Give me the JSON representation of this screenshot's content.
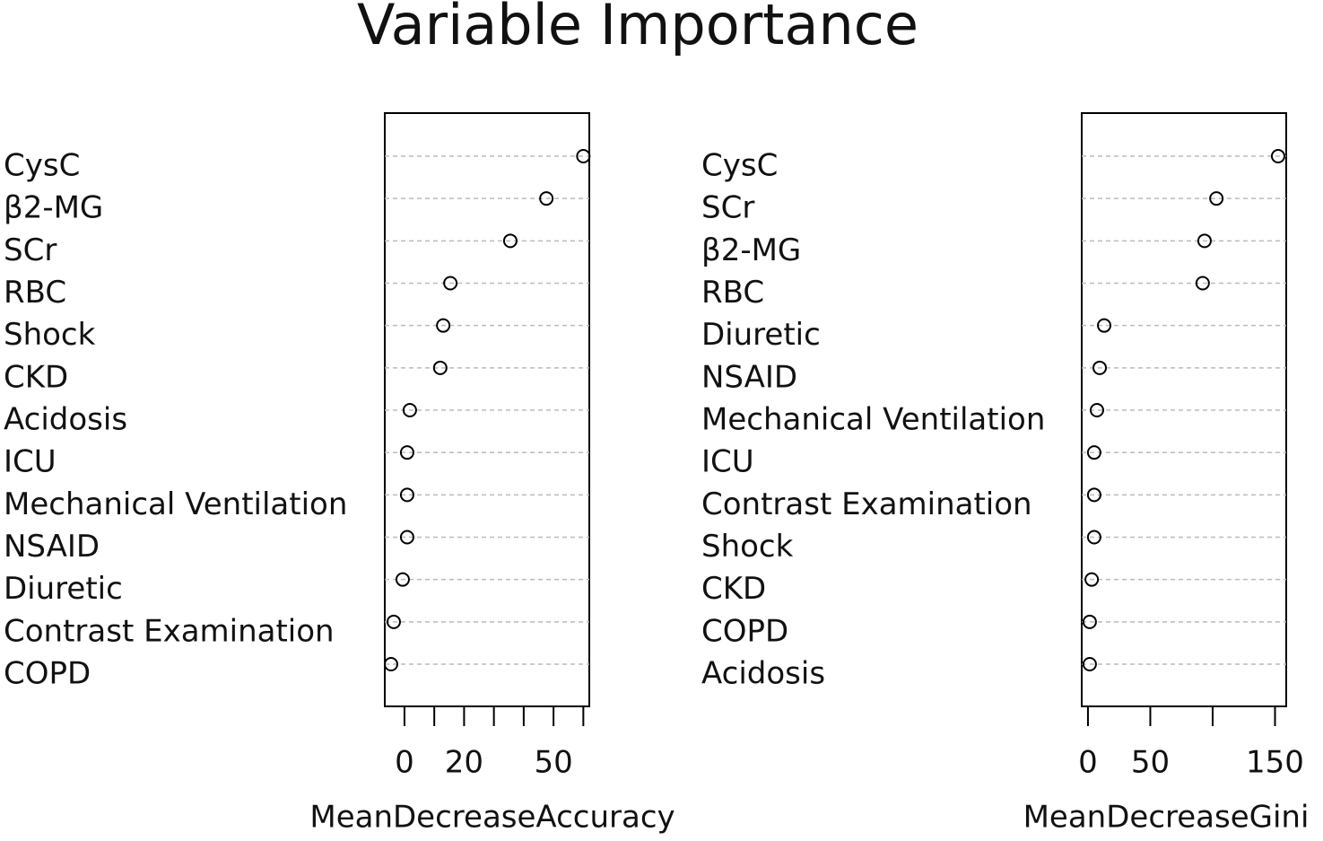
{
  "title": "Variable Importance",
  "chart_data": [
    {
      "type": "dot",
      "xlabel": "MeanDecreaseAccuracy",
      "categories": [
        "CysC",
        "β2-MG",
        "SCr",
        "RBC",
        "Shock",
        "CKD",
        "Acidosis",
        "ICU",
        "Mechanical Ventilation",
        "NSAID",
        "Diuretic",
        "Contrast Examination",
        "COPD"
      ],
      "values": [
        60,
        47.6,
        35.5,
        15.4,
        13,
        12,
        1.8,
        0.9,
        0.9,
        0.9,
        -0.6,
        -3.6,
        -4.5
      ],
      "xlim": [
        -6.6,
        62
      ],
      "xticks": [
        0,
        {
          "value": 10,
          "label": null
        },
        20,
        {
          "value": 30,
          "label": null
        },
        {
          "value": 40,
          "label": null
        },
        50,
        {
          "value": 60,
          "label": null
        }
      ],
      "color": "#000000",
      "grid": true
    },
    {
      "type": "dot",
      "xlabel": "MeanDecreaseGini",
      "categories": [
        "CysC",
        "SCr",
        "β2-MG",
        "RBC",
        "Diuretic",
        "NSAID",
        "Mechanical Ventilation",
        "ICU",
        "Contrast Examination",
        "Shock",
        "CKD",
        "COPD",
        "Acidosis"
      ],
      "values": [
        152.5,
        103,
        93.5,
        92,
        13,
        9.4,
        7.2,
        5,
        5,
        5,
        3,
        1.4,
        1.4
      ],
      "xlim": [
        -5,
        159
      ],
      "xticks": [
        0,
        50,
        {
          "value": 100,
          "label": null
        },
        150
      ],
      "color": "#000000",
      "grid": true
    }
  ]
}
